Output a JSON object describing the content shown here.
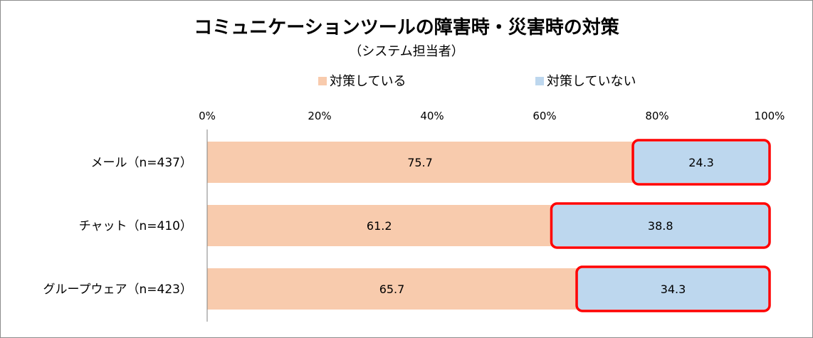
{
  "colors": {
    "series_1": "#F8CBAD",
    "series_2": "#BDD7EE",
    "highlight": "#FF0000",
    "axis": "#808080"
  },
  "chart_data": {
    "type": "bar",
    "orientation": "horizontal",
    "stacked": "percent",
    "title": "コミュニケーションツールの障害時・災害時の対策",
    "subtitle": "（システム担当者）",
    "categories": [
      "メール（n=437）",
      "チャット（n=410）",
      "グループウェア（n=423）"
    ],
    "series": [
      {
        "name": "対策している",
        "values": [
          75.7,
          61.2,
          65.7
        ]
      },
      {
        "name": "対策していない",
        "values": [
          24.3,
          38.8,
          34.3
        ]
      }
    ],
    "xlim": [
      0,
      100
    ],
    "ticks": [
      "0%",
      "20%",
      "40%",
      "60%",
      "80%",
      "100%"
    ],
    "grid": false,
    "legend": "top",
    "highlighted_series": "対策していない"
  }
}
